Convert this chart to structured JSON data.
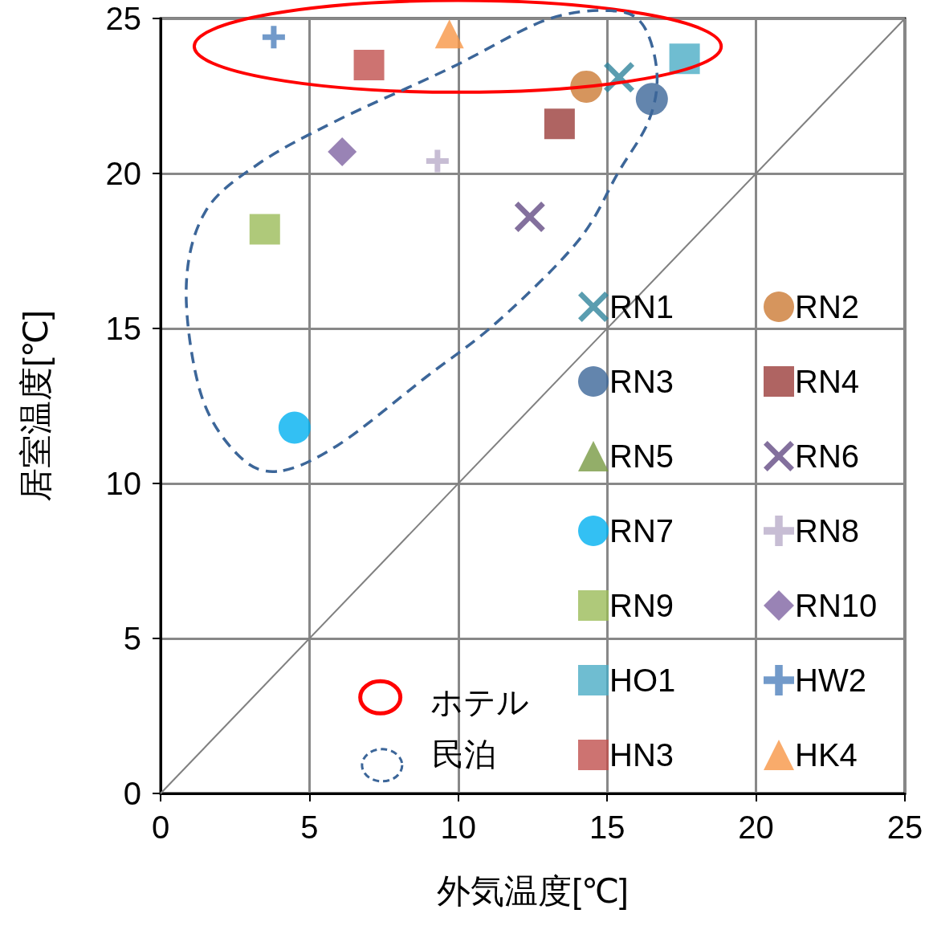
{
  "chart_data": {
    "type": "scatter",
    "xlabel": "外気温度[℃]",
    "ylabel": "居室温度[℃]",
    "xlim": [
      0,
      25
    ],
    "ylim": [
      0,
      25
    ],
    "xticks": [
      0,
      5,
      10,
      15,
      20,
      25
    ],
    "yticks": [
      0,
      5,
      10,
      15,
      20,
      25
    ],
    "grid": true,
    "legend": "right",
    "annotations": [
      "ホテル",
      "民泊"
    ],
    "series": [
      {
        "name": "RN1",
        "color": "#31859c",
        "marker": "cross",
        "x": [
          15.4
        ],
        "values": [
          23.1
        ]
      },
      {
        "name": "RN2",
        "color": "#cc7a34",
        "marker": "circle",
        "x": [
          14.3
        ],
        "values": [
          22.8
        ]
      },
      {
        "name": "RN3",
        "color": "#3c6699",
        "marker": "circle",
        "x": [
          16.5
        ],
        "values": [
          22.4
        ]
      },
      {
        "name": "RN4",
        "color": "#9b3d3b",
        "marker": "square",
        "x": [
          13.4
        ],
        "values": [
          21.6
        ]
      },
      {
        "name": "RN5",
        "color": "#789a43",
        "marker": "triangle",
        "x": [
          null
        ],
        "values": [
          null
        ]
      },
      {
        "name": "RN6",
        "color": "#644c84",
        "marker": "cross",
        "x": [
          12.4
        ],
        "values": [
          18.6
        ]
      },
      {
        "name": "RN7",
        "color": "#00b0f0",
        "marker": "circle",
        "x": [
          4.5
        ],
        "values": [
          11.8
        ]
      },
      {
        "name": "RN8",
        "color": "#b9acc9",
        "marker": "plus",
        "x": [
          9.3
        ],
        "values": [
          20.4
        ]
      },
      {
        "name": "RN9",
        "color": "#9bbb59",
        "marker": "square",
        "x": [
          3.5
        ],
        "values": [
          18.2
        ]
      },
      {
        "name": "RN10",
        "color": "#8064a2",
        "marker": "diamond",
        "x": [
          6.1
        ],
        "values": [
          20.7
        ]
      },
      {
        "name": "HO1",
        "color": "#4bacc6",
        "marker": "square",
        "x": [
          17.6
        ],
        "values": [
          23.7
        ]
      },
      {
        "name": "HW2",
        "color": "#4f81bd",
        "marker": "plus",
        "x": [
          3.8
        ],
        "values": [
          24.4
        ]
      },
      {
        "name": "HN3",
        "color": "#c0504d",
        "marker": "square",
        "x": [
          7.0
        ],
        "values": [
          23.5
        ]
      },
      {
        "name": "HK4",
        "color": "#f79646",
        "marker": "triangle",
        "x": [
          9.7
        ],
        "values": [
          24.5
        ]
      },
      {
        "type": "line",
        "color": "#808080",
        "marker": "none",
        "x": [
          0,
          25
        ],
        "values": [
          0,
          25
        ]
      }
    ]
  }
}
